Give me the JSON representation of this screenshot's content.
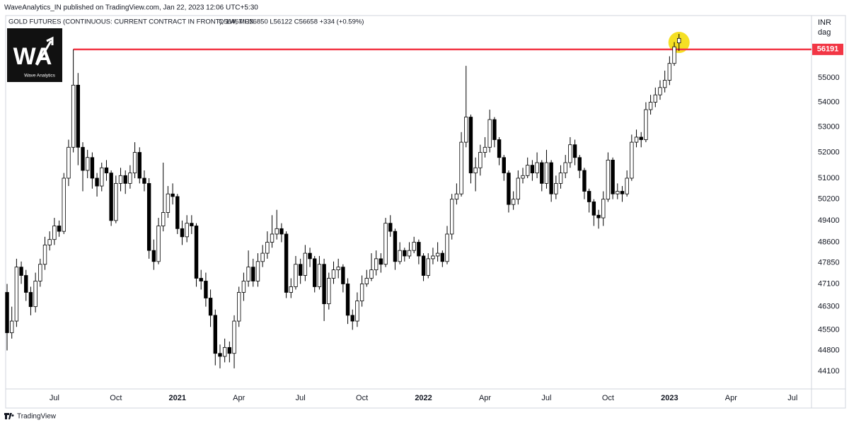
{
  "header": {
    "published": "WaveAnalytics_IN published on TradingView.com, Jan 22, 2023 12:06 UTC+5:30",
    "symbol": "GOLD FUTURES (CONTINUOUS: CURRENT CONTRACT IN FRONT), 1W, MCX",
    "ohlc": "O56467 H56850 L56122 C56658 +334 (+0.59%)"
  },
  "logo": {
    "mark": "WA",
    "text": "Wave Analytics"
  },
  "footer": {
    "brand": "TradingView"
  },
  "chart_data": {
    "type": "candlestick",
    "currency": "INR",
    "unit": "dag",
    "categories": [
      null,
      null,
      null,
      null,
      null,
      null,
      null,
      null,
      null,
      null,
      "Jul",
      null,
      null,
      null,
      null,
      null,
      null,
      null,
      null,
      null,
      null,
      null,
      null,
      "Oct",
      null,
      null,
      null,
      null,
      null,
      null,
      null,
      null,
      null,
      null,
      null,
      null,
      "2021",
      null,
      null,
      null,
      null,
      null,
      null,
      null,
      null,
      null,
      null,
      null,
      null,
      "Apr",
      null,
      null,
      null,
      null,
      null,
      null,
      null,
      null,
      null,
      null,
      null,
      null,
      "Jul",
      null,
      null,
      null,
      null,
      null,
      null,
      null,
      null,
      null,
      null,
      null,
      null,
      "Oct",
      null,
      null,
      null,
      null,
      null,
      null,
      null,
      null,
      null,
      null,
      null,
      null,
      "2022",
      null,
      null,
      null,
      null,
      null,
      null,
      null,
      null,
      null,
      null,
      null,
      null,
      "Apr",
      null,
      null,
      null,
      null,
      null,
      null,
      null,
      null,
      null,
      null,
      null,
      null,
      "Jul",
      null,
      null,
      null,
      null,
      null,
      null,
      null,
      null,
      null,
      null,
      null,
      null,
      "Oct",
      null,
      null,
      null,
      null,
      null,
      null,
      null,
      null,
      null,
      null,
      null,
      null,
      "2023",
      null,
      null,
      null,
      null,
      null,
      null,
      null,
      null,
      null,
      null,
      null,
      null,
      "Apr",
      null,
      null,
      null,
      null,
      null,
      null,
      null,
      null,
      null,
      null,
      null,
      null,
      "Jul",
      null,
      null,
      null,
      null
    ],
    "open": [
      46800,
      45400,
      45800,
      47700,
      47400,
      46800,
      46300,
      47200,
      47800,
      48500,
      48700,
      49200,
      49000,
      51000,
      52200,
      54700,
      52200,
      51300,
      51800,
      51000,
      50700,
      51400,
      51200,
      49400,
      50800,
      51100,
      50800,
      51200,
      52000,
      51000,
      50800,
      48300,
      47900,
      49200,
      49700,
      50400,
      50300,
      49100,
      48800,
      49300,
      49200,
      47300,
      47200,
      46600,
      46000,
      44700,
      44600,
      44900,
      44700,
      45800,
      46800,
      47200,
      47700,
      47200,
      47900,
      48200,
      48600,
      48900,
      49100,
      48900,
      46800,
      47000,
      47800,
      47400,
      48200,
      48000,
      47000,
      47800,
      46400,
      47300,
      47600,
      47700,
      47100,
      46000,
      45800,
      46500,
      47100,
      47300,
      47600,
      48000,
      47800,
      49300,
      49000,
      47900,
      48300,
      48100,
      48300,
      48600,
      48100,
      47400,
      48000,
      48100,
      48200,
      47900,
      48900,
      50200,
      50400,
      52400,
      53400,
      51200,
      51400,
      52000,
      52200,
      53300,
      52500,
      51800,
      51200,
      50000,
      50200,
      51000,
      51100,
      51500,
      51200,
      51600,
      50800,
      51600,
      50400,
      50800,
      51200,
      51600,
      52300,
      51800,
      51300,
      50500,
      50100,
      49600,
      49500,
      50200,
      51700,
      50400,
      50500,
      50400,
      51000,
      52400,
      52600,
      52500,
      53700,
      54000,
      54300,
      54600,
      54900,
      55600,
      56467,
      null,
      null,
      null,
      null,
      null,
      null,
      null,
      null,
      null,
      null,
      null,
      null,
      null,
      null,
      null,
      null,
      null,
      null,
      null,
      null,
      null,
      null,
      null,
      null,
      null,
      null,
      null,
      null
    ],
    "high": [
      47100,
      46300,
      48000,
      47900,
      47600,
      47000,
      47500,
      48000,
      48800,
      49000,
      49500,
      49400,
      51200,
      52500,
      56191,
      55200,
      52400,
      52100,
      52000,
      51200,
      51600,
      51700,
      51300,
      51100,
      51400,
      51300,
      51500,
      52400,
      52200,
      51300,
      51000,
      48700,
      49500,
      51600,
      50700,
      50800,
      50400,
      49400,
      49600,
      49600,
      49300,
      47600,
      47500,
      46900,
      46200,
      45000,
      45200,
      45100,
      46000,
      47000,
      47500,
      48300,
      48000,
      48200,
      48500,
      49000,
      49600,
      49800,
      49300,
      49000,
      47300,
      48100,
      48000,
      48500,
      48400,
      48100,
      48100,
      48000,
      47500,
      47900,
      48000,
      47800,
      47300,
      46200,
      46800,
      47400,
      47600,
      48200,
      48300,
      48200,
      49500,
      49600,
      49100,
      48600,
      48400,
      48600,
      48800,
      48700,
      48200,
      48200,
      48400,
      48600,
      48300,
      49200,
      50400,
      50800,
      52800,
      55500,
      53500,
      51800,
      52300,
      52600,
      53700,
      53400,
      52600,
      51900,
      51300,
      50500,
      51300,
      51400,
      51800,
      51700,
      52000,
      51700,
      52100,
      51700,
      51100,
      51500,
      51900,
      52600,
      52500,
      51900,
      51400,
      50600,
      50200,
      49800,
      50500,
      52000,
      51800,
      50800,
      50700,
      51300,
      52700,
      52900,
      52800,
      54000,
      54300,
      54600,
      54900,
      55300,
      55900,
      56500,
      56850,
      null,
      null,
      null,
      null,
      null,
      null,
      null,
      null,
      null,
      null,
      null,
      null,
      null,
      null,
      null,
      null,
      null,
      null,
      null,
      null,
      null,
      null,
      null,
      null,
      null,
      null,
      null,
      null
    ],
    "low": [
      44800,
      45200,
      45600,
      47100,
      46500,
      46000,
      46100,
      47000,
      47600,
      48300,
      48500,
      48800,
      48900,
      50700,
      52000,
      51500,
      50500,
      51000,
      50600,
      50300,
      50500,
      50900,
      49200,
      49300,
      50500,
      50400,
      50600,
      51000,
      50800,
      50500,
      48000,
      47600,
      47800,
      49000,
      49500,
      50000,
      48900,
      48500,
      48600,
      48900,
      47000,
      46900,
      46300,
      45600,
      44300,
      44200,
      44400,
      44400,
      44200,
      45600,
      46500,
      47000,
      47000,
      47000,
      47700,
      48000,
      48400,
      48700,
      48600,
      46600,
      46600,
      46900,
      47100,
      47200,
      47700,
      46800,
      46900,
      45800,
      46200,
      47100,
      47300,
      46800,
      45700,
      45500,
      45600,
      46300,
      47000,
      47200,
      47400,
      47500,
      47700,
      48800,
      47600,
      47800,
      47900,
      48000,
      48200,
      47800,
      47200,
      47300,
      47800,
      47900,
      47700,
      47800,
      48700,
      50000,
      50300,
      52200,
      50800,
      50500,
      51100,
      51800,
      52000,
      52200,
      51500,
      50900,
      49700,
      49800,
      50000,
      50800,
      51000,
      50900,
      51000,
      50500,
      50600,
      50100,
      50200,
      50600,
      51000,
      51400,
      51500,
      51000,
      50200,
      49700,
      49200,
      49100,
      49200,
      50100,
      50200,
      50200,
      50100,
      50300,
      50900,
      52200,
      52200,
      52400,
      53500,
      53800,
      54100,
      54400,
      54700,
      55500,
      56122,
      null,
      null,
      null,
      null,
      null,
      null,
      null,
      null,
      null,
      null,
      null,
      null,
      null,
      null,
      null,
      null,
      null,
      null,
      null,
      null,
      null,
      null,
      null,
      null,
      null,
      null,
      null,
      null
    ],
    "close": [
      45400,
      45800,
      47700,
      47400,
      46800,
      46300,
      47200,
      47800,
      48500,
      48700,
      49200,
      49000,
      51000,
      52200,
      54700,
      52200,
      51300,
      51800,
      51000,
      50700,
      51400,
      51200,
      49400,
      50800,
      51100,
      50800,
      51200,
      52000,
      51000,
      50800,
      48300,
      47900,
      49200,
      49700,
      50400,
      50300,
      49100,
      48800,
      49300,
      49200,
      47300,
      47200,
      46600,
      46000,
      44700,
      44600,
      44900,
      44700,
      45800,
      46800,
      47200,
      47700,
      47200,
      47900,
      48200,
      48600,
      48900,
      49100,
      48900,
      46800,
      47000,
      47800,
      47400,
      48200,
      48000,
      47000,
      47800,
      46400,
      47300,
      47600,
      47700,
      47100,
      46000,
      45800,
      46500,
      47100,
      47300,
      47600,
      48000,
      47800,
      49300,
      49000,
      47900,
      48300,
      48100,
      48300,
      48600,
      48100,
      47400,
      48000,
      48100,
      48200,
      47900,
      48900,
      50200,
      50400,
      52400,
      53400,
      51200,
      51400,
      52000,
      52200,
      53300,
      52500,
      51800,
      51200,
      50000,
      50200,
      51000,
      51100,
      51500,
      51200,
      51600,
      50800,
      51600,
      50400,
      50800,
      51200,
      51600,
      52300,
      51800,
      51300,
      50500,
      50100,
      49600,
      49500,
      50200,
      51700,
      50400,
      50500,
      50400,
      51000,
      52400,
      52600,
      52500,
      53700,
      54000,
      54300,
      54600,
      54900,
      55600,
      56300,
      56658,
      null,
      null,
      null,
      null,
      null,
      null,
      null,
      null,
      null,
      null,
      null,
      null,
      null,
      null,
      null,
      null,
      null,
      null,
      null,
      null,
      null,
      null,
      null,
      null,
      null,
      null,
      null,
      null
    ],
    "up_color": "#ffffff",
    "down_color": "#000000",
    "wick_color": "#000000",
    "log_scale": true,
    "grid": false,
    "ylim": [
      43520,
      57640
    ],
    "yticks": [
      44100,
      44800,
      45500,
      46300,
      47100,
      47850,
      48600,
      49400,
      50200,
      51000,
      52000,
      53000,
      54000,
      55000
    ],
    "hline": {
      "value": 56191,
      "color": "#f23645"
    },
    "highlight_color": "#f5e024"
  }
}
